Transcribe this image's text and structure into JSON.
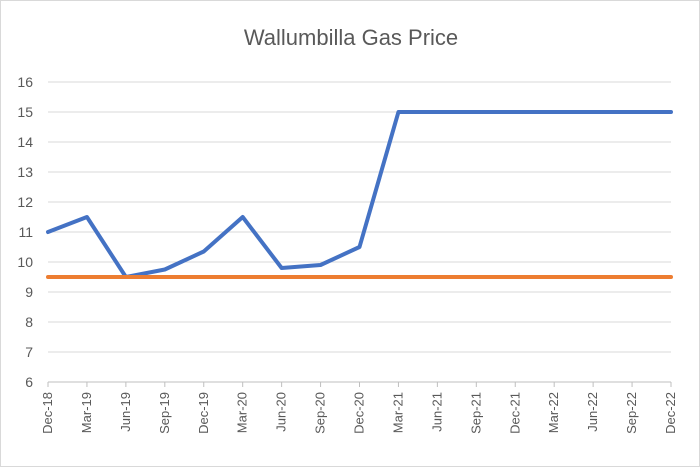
{
  "chart_data": {
    "type": "line",
    "title": "Wallumbilla Gas Price",
    "xlabel": "",
    "ylabel": "",
    "categories": [
      "Dec-18",
      "Mar-19",
      "Jun-19",
      "Sep-19",
      "Dec-19",
      "Mar-20",
      "Jun-20",
      "Sep-20",
      "Dec-20",
      "Mar-21",
      "Jun-21",
      "Sep-21",
      "Dec-21",
      "Mar-22",
      "Jun-22",
      "Sep-22",
      "Dec-22"
    ],
    "yticks": [
      "6",
      "7",
      "8",
      "9",
      "10",
      "11",
      "12",
      "13",
      "14",
      "15",
      "16"
    ],
    "ylim": [
      6,
      16
    ],
    "grid": true,
    "legend": "none",
    "series": [
      {
        "color": "#4472C4",
        "values": [
          11.0,
          11.5,
          9.5,
          9.75,
          10.35,
          11.5,
          9.8,
          9.9,
          10.5,
          15.0,
          15.0,
          15.0,
          15.0,
          15.0,
          15.0,
          15.0,
          15.0
        ]
      },
      {
        "color": "#ED7D31",
        "values": [
          9.5,
          9.5,
          9.5,
          9.5,
          9.5,
          9.5,
          9.5,
          9.5,
          9.5,
          9.5,
          9.5,
          9.5,
          9.5,
          9.5,
          9.5,
          9.5,
          9.5
        ]
      }
    ]
  }
}
